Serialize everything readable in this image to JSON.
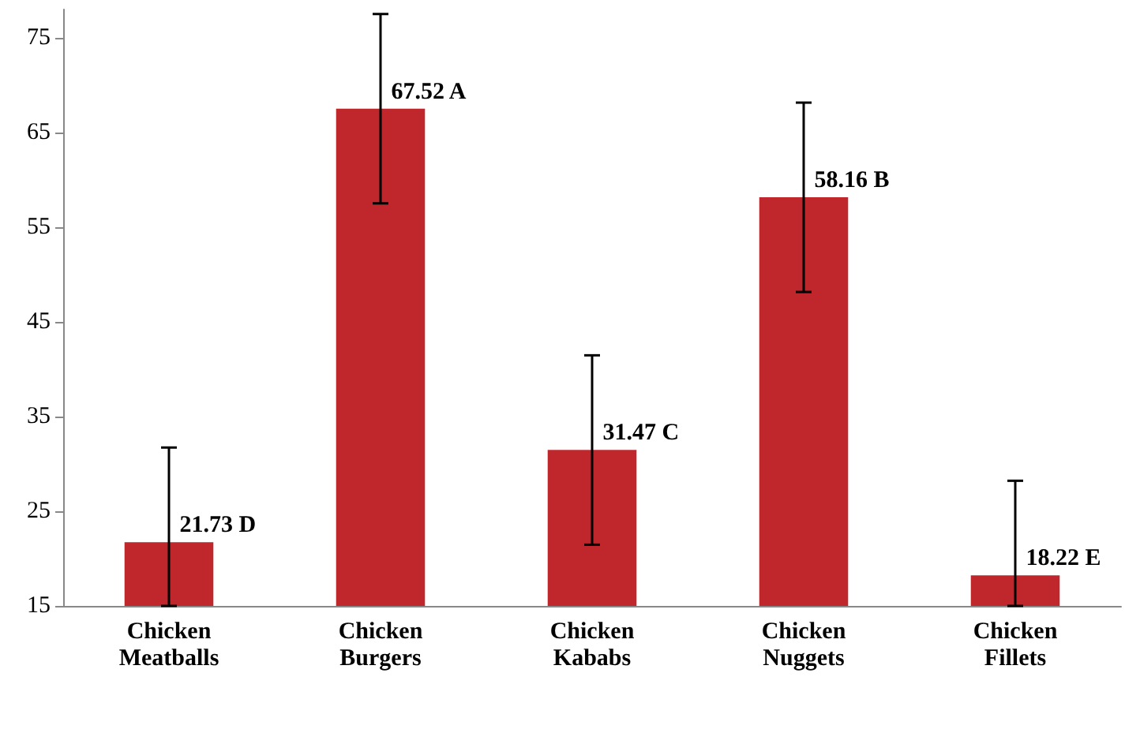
{
  "chart_data": {
    "type": "bar",
    "categories": [
      "Chicken Meatballs",
      "Chicken Burgers",
      "Chicken Kababs",
      "Chicken Nuggets",
      "Chicken Fillets"
    ],
    "values": [
      21.73,
      67.52,
      31.47,
      58.16,
      18.22
    ],
    "value_labels": [
      "21.73 D",
      "67.52 A",
      "31.47 C",
      "58.16 B",
      "18.22 E"
    ],
    "errors": [
      [
        15,
        31.73
      ],
      [
        57.52,
        77.52
      ],
      [
        21.47,
        41.47
      ],
      [
        48.16,
        68.16
      ],
      [
        15,
        28.22
      ]
    ],
    "color": "#c0272d",
    "ylim": [
      15,
      78
    ],
    "yticks": [
      15,
      25,
      35,
      45,
      55,
      65,
      75
    ],
    "grid": false
  }
}
